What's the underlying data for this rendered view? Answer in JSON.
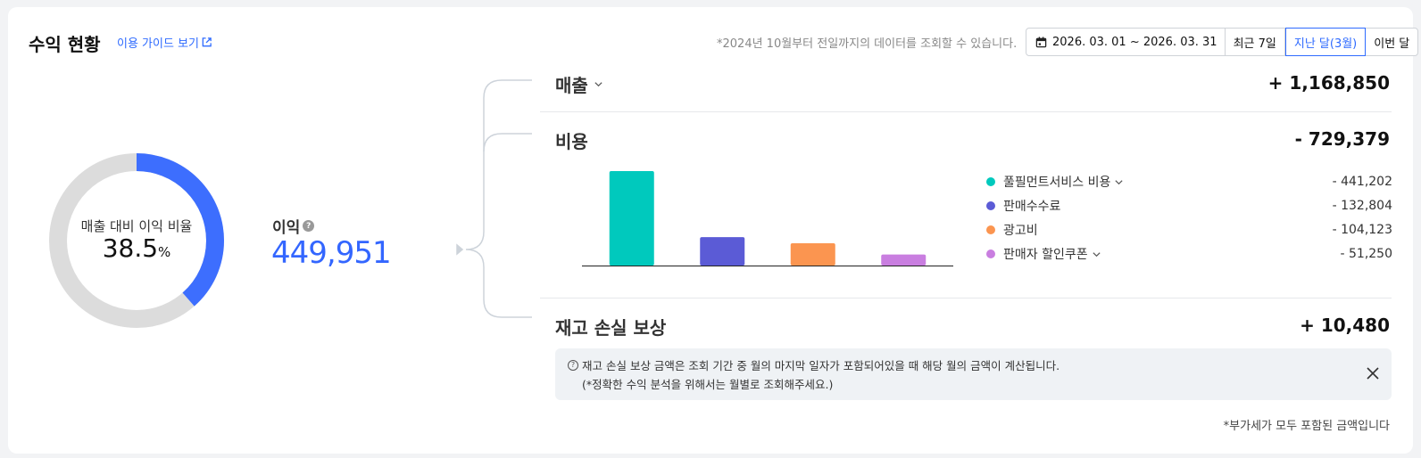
{
  "header": {
    "title": "수익 현황",
    "guide_link": "이용 가이드 보기",
    "notice": "*2024년 10월부터 전일까지의 데이터를 조회할 수 있습니다.",
    "date_range": "2026. 03. 01 ~ 2026. 03. 31",
    "period_options": [
      "최근 7일",
      "지난 달(3월)",
      "이번 달"
    ],
    "selected_period": "지난 달(3월)"
  },
  "summary": {
    "ratio_label": "매출 대비 이익 비율",
    "ratio_value": "38.5",
    "ratio_unit": "%",
    "ratio_fraction": 0.385,
    "profit_label": "이익",
    "profit_value": "449,951"
  },
  "sales": {
    "label": "매출",
    "value": "+ 1,168,850"
  },
  "costs": {
    "label": "비용",
    "value": "- 729,379",
    "items": [
      {
        "name": "풀필먼트서비스 비용",
        "amount": "- 441,202",
        "color": "#00c9bd",
        "expandable": true
      },
      {
        "name": "판매수수료",
        "amount": "- 132,804",
        "color": "#5b5bd6",
        "expandable": false
      },
      {
        "name": "광고비",
        "amount": "- 104,123",
        "color": "#fb9550",
        "expandable": false
      },
      {
        "name": "판매자 할인쿠폰",
        "amount": "- 51,250",
        "color": "#c97ee0",
        "expandable": true
      }
    ]
  },
  "chart_data": {
    "type": "bar",
    "categories": [
      "풀필먼트서비스 비용",
      "판매수수료",
      "광고비",
      "판매자 할인쿠폰"
    ],
    "values": [
      441202,
      132804,
      104123,
      51250
    ],
    "colors": [
      "#00c9bd",
      "#5b5bd6",
      "#fb9550",
      "#c97ee0"
    ]
  },
  "inventory": {
    "label": "재고 손실 보상",
    "value": "+ 10,480",
    "info_line1": "재고 손실 보상 금액은 조회 기간 중 월의 마지막 일자가 포함되어있을 때 해당 월의 금액이 계산됩니다.",
    "info_line2": "(*정확한 수익 분석을 위해서는 월별로 조회해주세요.)"
  },
  "footnote": "*부가세가 모두 포함된 금액입니다",
  "colors": {
    "accent": "#2f6bff",
    "profit": "#3366ff",
    "donut_track": "#dcdcdc",
    "donut_fill": "#3d6efe"
  }
}
